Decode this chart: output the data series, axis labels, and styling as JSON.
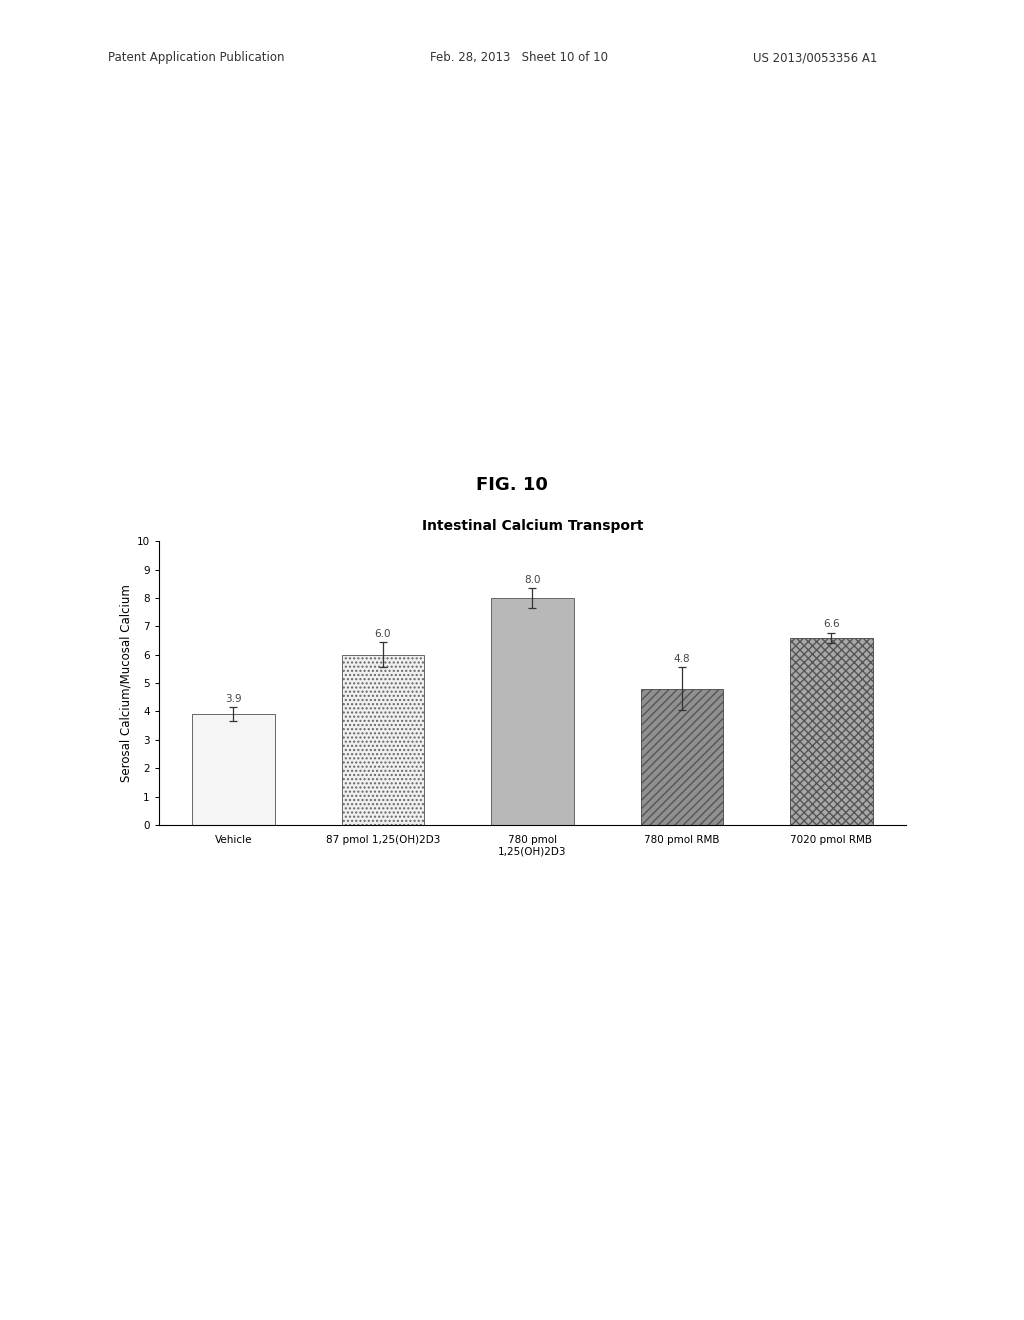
{
  "title": "Intestinal Calcium Transport",
  "fig_label": "FIG. 10",
  "ylabel": "Serosal Calcium/Mucosal Calcium",
  "categories": [
    "Vehicle",
    "87 pmol 1,25(OH)2D3",
    "780 pmol\n1,25(OH)2D3",
    "780 pmol RMB",
    "7020 pmol RMB"
  ],
  "values": [
    3.9,
    6.0,
    8.0,
    4.8,
    6.6
  ],
  "errors": [
    0.25,
    0.45,
    0.35,
    0.75,
    0.18
  ],
  "bar_labels": [
    "3.9",
    "6.0",
    "8.0",
    "4.8",
    "6.6"
  ],
  "ylim": [
    0,
    10
  ],
  "yticks": [
    0,
    1,
    2,
    3,
    4,
    5,
    6,
    7,
    8,
    9,
    10
  ],
  "background_color": "#ffffff",
  "error_color": "#333333",
  "label_fontsize": 7.5,
  "title_fontsize": 10,
  "axis_label_fontsize": 8.5,
  "fig_label_fontsize": 13,
  "bar_width": 0.55,
  "bar_configs": [
    {
      "facecolor": "#f5f5f5",
      "hatch": "",
      "edgecolor": "#666666"
    },
    {
      "facecolor": "#f0f0f0",
      "hatch": "....",
      "edgecolor": "#666666"
    },
    {
      "facecolor": "#b8b8b8",
      "hatch": "",
      "edgecolor": "#666666"
    },
    {
      "facecolor": "#909090",
      "hatch": "////",
      "edgecolor": "#555555"
    },
    {
      "facecolor": "#a8a8a8",
      "hatch": "xxxx",
      "edgecolor": "#555555"
    }
  ],
  "header_left": "Patent Application Publication",
  "header_mid": "Feb. 28, 2013   Sheet 10 of 10",
  "header_right": "US 2013/0053356 A1"
}
